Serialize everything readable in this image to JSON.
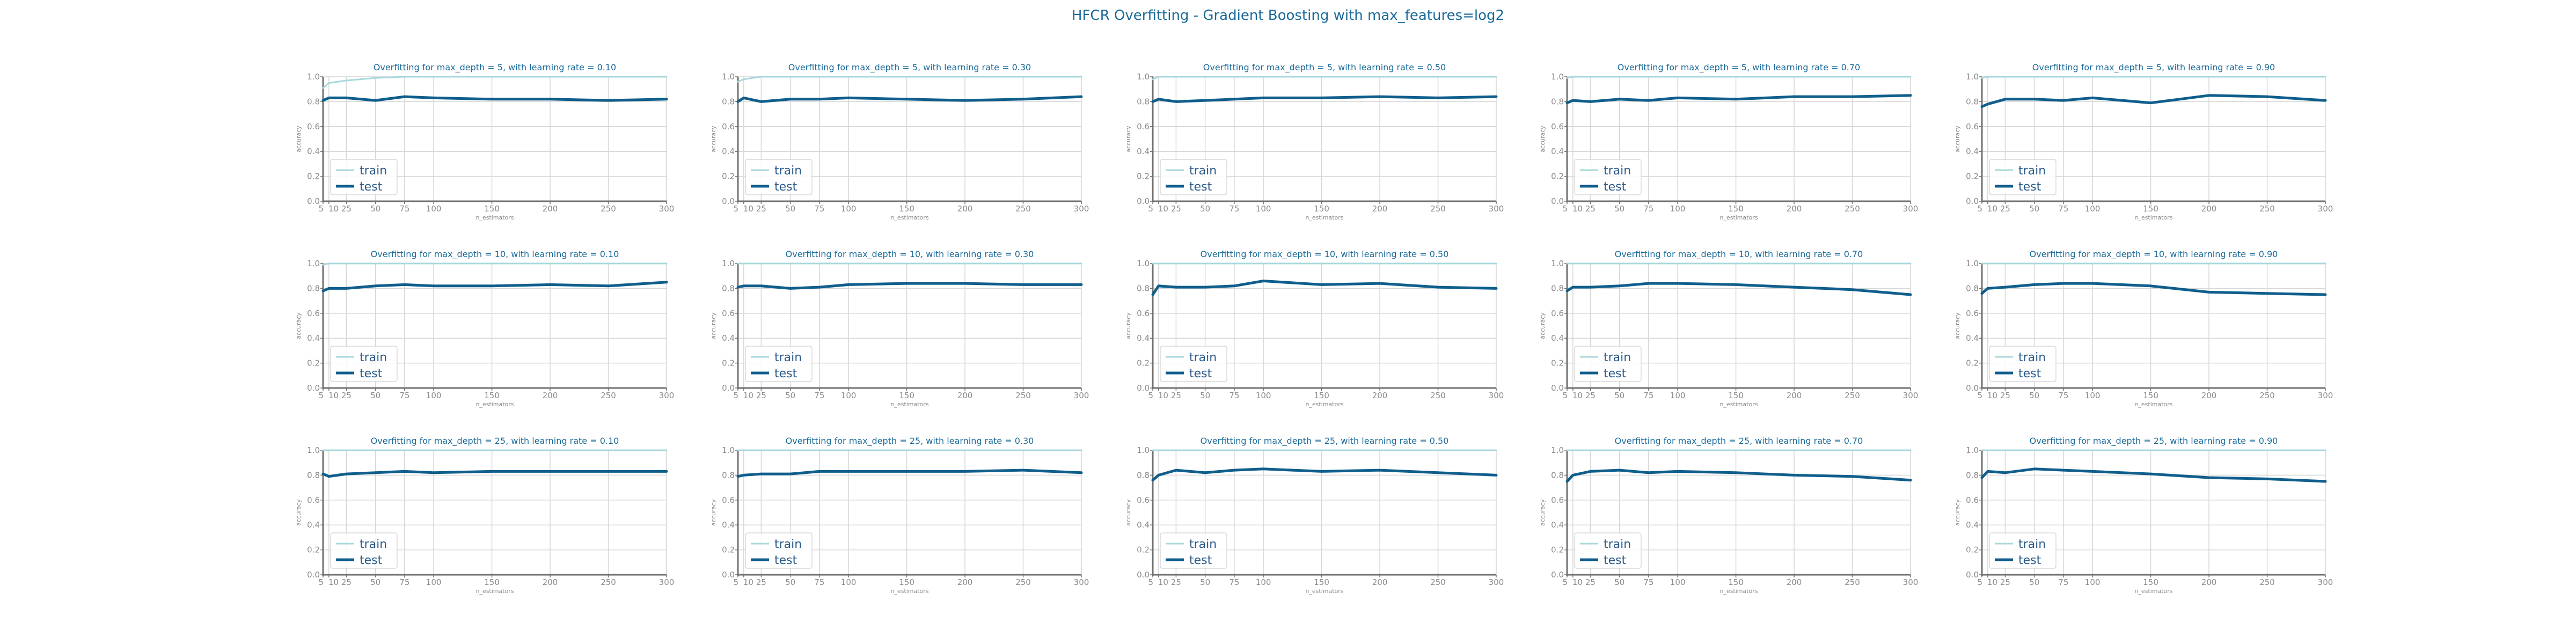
{
  "title": "HFCR Overfitting - Gradient Boosting with max_features=log2",
  "colors": {
    "train": "#a8d8dc",
    "test": "#0f5e8c",
    "grid": "#d6d6d6",
    "axis": "#707070",
    "text": "#1a6a9a"
  },
  "chart_data": [
    {
      "type": "line",
      "title": "Overfitting for max_depth = 5, with learning rate = 0.10",
      "xlabel": "n_estimators",
      "ylabel": "accuracy",
      "x": [
        5,
        10,
        25,
        50,
        75,
        100,
        150,
        200,
        250,
        300
      ],
      "xticks": [
        "5",
        "10",
        "25",
        "50",
        "75",
        "100",
        "150",
        "200",
        "250",
        "300"
      ],
      "ylim": [
        0,
        1
      ],
      "yticks": [
        "0.0",
        "0.2",
        "0.4",
        "0.6",
        "0.8",
        "1.0"
      ],
      "grid": true,
      "legend": "lower left",
      "series": [
        {
          "name": "train",
          "values": [
            0.91,
            0.95,
            0.97,
            0.99,
            1.0,
            1.0,
            1.0,
            1.0,
            1.0,
            1.0
          ]
        },
        {
          "name": "test",
          "values": [
            0.81,
            0.83,
            0.83,
            0.81,
            0.84,
            0.83,
            0.82,
            0.82,
            0.81,
            0.82
          ]
        }
      ]
    },
    {
      "type": "line",
      "title": "Overfitting for max_depth = 5, with learning rate = 0.30",
      "xlabel": "n_estimators",
      "ylabel": "accuracy",
      "x": [
        5,
        10,
        25,
        50,
        75,
        100,
        150,
        200,
        250,
        300
      ],
      "xticks": [
        "5",
        "10",
        "25",
        "50",
        "75",
        "100",
        "150",
        "200",
        "250",
        "300"
      ],
      "ylim": [
        0,
        1
      ],
      "yticks": [
        "0.0",
        "0.2",
        "0.4",
        "0.6",
        "0.8",
        "1.0"
      ],
      "grid": true,
      "legend": "lower left",
      "series": [
        {
          "name": "train",
          "values": [
            0.96,
            0.98,
            1.0,
            1.0,
            1.0,
            1.0,
            1.0,
            1.0,
            1.0,
            1.0
          ]
        },
        {
          "name": "test",
          "values": [
            0.8,
            0.83,
            0.8,
            0.82,
            0.82,
            0.83,
            0.82,
            0.81,
            0.82,
            0.84
          ]
        }
      ]
    },
    {
      "type": "line",
      "title": "Overfitting for max_depth = 5, with learning rate = 0.50",
      "xlabel": "n_estimators",
      "ylabel": "accuracy",
      "x": [
        5,
        10,
        25,
        50,
        75,
        100,
        150,
        200,
        250,
        300
      ],
      "xticks": [
        "5",
        "10",
        "25",
        "50",
        "75",
        "100",
        "150",
        "200",
        "250",
        "300"
      ],
      "ylim": [
        0,
        1
      ],
      "yticks": [
        "0.0",
        "0.2",
        "0.4",
        "0.6",
        "0.8",
        "1.0"
      ],
      "grid": true,
      "legend": "lower left",
      "series": [
        {
          "name": "train",
          "values": [
            0.98,
            1.0,
            1.0,
            1.0,
            1.0,
            1.0,
            1.0,
            1.0,
            1.0,
            1.0
          ]
        },
        {
          "name": "test",
          "values": [
            0.8,
            0.82,
            0.8,
            0.81,
            0.82,
            0.83,
            0.83,
            0.84,
            0.83,
            0.84
          ]
        }
      ]
    },
    {
      "type": "line",
      "title": "Overfitting for max_depth = 5, with learning rate = 0.70",
      "xlabel": "n_estimators",
      "ylabel": "accuracy",
      "x": [
        5,
        10,
        25,
        50,
        75,
        100,
        150,
        200,
        250,
        300
      ],
      "xticks": [
        "5",
        "10",
        "25",
        "50",
        "75",
        "100",
        "150",
        "200",
        "250",
        "300"
      ],
      "ylim": [
        0,
        1
      ],
      "yticks": [
        "0.0",
        "0.2",
        "0.4",
        "0.6",
        "0.8",
        "1.0"
      ],
      "grid": true,
      "legend": "lower left",
      "series": [
        {
          "name": "train",
          "values": [
            0.99,
            1.0,
            1.0,
            1.0,
            1.0,
            1.0,
            1.0,
            1.0,
            1.0,
            1.0
          ]
        },
        {
          "name": "test",
          "values": [
            0.79,
            0.81,
            0.8,
            0.82,
            0.81,
            0.83,
            0.82,
            0.84,
            0.84,
            0.85
          ]
        }
      ]
    },
    {
      "type": "line",
      "title": "Overfitting for max_depth = 5, with learning rate = 0.90",
      "xlabel": "n_estimators",
      "ylabel": "accuracy",
      "x": [
        5,
        10,
        25,
        50,
        75,
        100,
        150,
        200,
        250,
        300
      ],
      "xticks": [
        "5",
        "10",
        "25",
        "50",
        "75",
        "100",
        "150",
        "200",
        "250",
        "300"
      ],
      "ylim": [
        0,
        1
      ],
      "yticks": [
        "0.0",
        "0.2",
        "0.4",
        "0.6",
        "0.8",
        "1.0"
      ],
      "grid": true,
      "legend": "lower left",
      "series": [
        {
          "name": "train",
          "values": [
            0.99,
            1.0,
            1.0,
            1.0,
            1.0,
            1.0,
            1.0,
            1.0,
            1.0,
            1.0
          ]
        },
        {
          "name": "test",
          "values": [
            0.76,
            0.78,
            0.82,
            0.82,
            0.81,
            0.83,
            0.79,
            0.85,
            0.84,
            0.81
          ]
        }
      ]
    },
    {
      "type": "line",
      "title": "Overfitting for max_depth = 10, with learning rate = 0.10",
      "xlabel": "n_estimators",
      "ylabel": "accuracy",
      "x": [
        5,
        10,
        25,
        50,
        75,
        100,
        150,
        200,
        250,
        300
      ],
      "xticks": [
        "5",
        "10",
        "25",
        "50",
        "75",
        "100",
        "150",
        "200",
        "250",
        "300"
      ],
      "ylim": [
        0,
        1
      ],
      "yticks": [
        "0.0",
        "0.2",
        "0.4",
        "0.6",
        "0.8",
        "1.0"
      ],
      "grid": true,
      "legend": "lower left",
      "series": [
        {
          "name": "train",
          "values": [
            0.99,
            1.0,
            1.0,
            1.0,
            1.0,
            1.0,
            1.0,
            1.0,
            1.0,
            1.0
          ]
        },
        {
          "name": "test",
          "values": [
            0.78,
            0.8,
            0.8,
            0.82,
            0.83,
            0.82,
            0.82,
            0.83,
            0.82,
            0.85
          ]
        }
      ]
    },
    {
      "type": "line",
      "title": "Overfitting for max_depth = 10, with learning rate = 0.30",
      "xlabel": "n_estimators",
      "ylabel": "accuracy",
      "x": [
        5,
        10,
        25,
        50,
        75,
        100,
        150,
        200,
        250,
        300
      ],
      "xticks": [
        "5",
        "10",
        "25",
        "50",
        "75",
        "100",
        "150",
        "200",
        "250",
        "300"
      ],
      "ylim": [
        0,
        1
      ],
      "yticks": [
        "0.0",
        "0.2",
        "0.4",
        "0.6",
        "0.8",
        "1.0"
      ],
      "grid": true,
      "legend": "lower left",
      "series": [
        {
          "name": "train",
          "values": [
            1.0,
            1.0,
            1.0,
            1.0,
            1.0,
            1.0,
            1.0,
            1.0,
            1.0,
            1.0
          ]
        },
        {
          "name": "test",
          "values": [
            0.81,
            0.82,
            0.82,
            0.8,
            0.81,
            0.83,
            0.84,
            0.84,
            0.83,
            0.83
          ]
        }
      ]
    },
    {
      "type": "line",
      "title": "Overfitting for max_depth = 10, with learning rate = 0.50",
      "xlabel": "n_estimators",
      "ylabel": "accuracy",
      "x": [
        5,
        10,
        25,
        50,
        75,
        100,
        150,
        200,
        250,
        300
      ],
      "xticks": [
        "5",
        "10",
        "25",
        "50",
        "75",
        "100",
        "150",
        "200",
        "250",
        "300"
      ],
      "ylim": [
        0,
        1
      ],
      "yticks": [
        "0.0",
        "0.2",
        "0.4",
        "0.6",
        "0.8",
        "1.0"
      ],
      "grid": true,
      "legend": "lower left",
      "series": [
        {
          "name": "train",
          "values": [
            1.0,
            1.0,
            1.0,
            1.0,
            1.0,
            1.0,
            1.0,
            1.0,
            1.0,
            1.0
          ]
        },
        {
          "name": "test",
          "values": [
            0.75,
            0.82,
            0.81,
            0.81,
            0.82,
            0.86,
            0.83,
            0.84,
            0.81,
            0.8
          ]
        }
      ]
    },
    {
      "type": "line",
      "title": "Overfitting for max_depth = 10, with learning rate = 0.70",
      "xlabel": "n_estimators",
      "ylabel": "accuracy",
      "x": [
        5,
        10,
        25,
        50,
        75,
        100,
        150,
        200,
        250,
        300
      ],
      "xticks": [
        "5",
        "10",
        "25",
        "50",
        "75",
        "100",
        "150",
        "200",
        "250",
        "300"
      ],
      "ylim": [
        0,
        1
      ],
      "yticks": [
        "0.0",
        "0.2",
        "0.4",
        "0.6",
        "0.8",
        "1.0"
      ],
      "grid": true,
      "legend": "lower left",
      "series": [
        {
          "name": "train",
          "values": [
            1.0,
            1.0,
            1.0,
            1.0,
            1.0,
            1.0,
            1.0,
            1.0,
            1.0,
            1.0
          ]
        },
        {
          "name": "test",
          "values": [
            0.78,
            0.81,
            0.81,
            0.82,
            0.84,
            0.84,
            0.83,
            0.81,
            0.79,
            0.75
          ]
        }
      ]
    },
    {
      "type": "line",
      "title": "Overfitting for max_depth = 10, with learning rate = 0.90",
      "xlabel": "n_estimators",
      "ylabel": "accuracy",
      "x": [
        5,
        10,
        25,
        50,
        75,
        100,
        150,
        200,
        250,
        300
      ],
      "xticks": [
        "5",
        "10",
        "25",
        "50",
        "75",
        "100",
        "150",
        "200",
        "250",
        "300"
      ],
      "ylim": [
        0,
        1
      ],
      "yticks": [
        "0.0",
        "0.2",
        "0.4",
        "0.6",
        "0.8",
        "1.0"
      ],
      "grid": true,
      "legend": "lower left",
      "series": [
        {
          "name": "train",
          "values": [
            1.0,
            1.0,
            1.0,
            1.0,
            1.0,
            1.0,
            1.0,
            1.0,
            1.0,
            1.0
          ]
        },
        {
          "name": "test",
          "values": [
            0.76,
            0.8,
            0.81,
            0.83,
            0.84,
            0.84,
            0.82,
            0.77,
            0.76,
            0.75
          ]
        }
      ]
    },
    {
      "type": "line",
      "title": "Overfitting for max_depth = 25, with learning rate = 0.10",
      "xlabel": "n_estimators",
      "ylabel": "accuracy",
      "x": [
        5,
        10,
        25,
        50,
        75,
        100,
        150,
        200,
        250,
        300
      ],
      "xticks": [
        "5",
        "10",
        "25",
        "50",
        "75",
        "100",
        "150",
        "200",
        "250",
        "300"
      ],
      "ylim": [
        0,
        1
      ],
      "yticks": [
        "0.0",
        "0.2",
        "0.4",
        "0.6",
        "0.8",
        "1.0"
      ],
      "grid": true,
      "legend": "lower left",
      "series": [
        {
          "name": "train",
          "values": [
            1.0,
            1.0,
            1.0,
            1.0,
            1.0,
            1.0,
            1.0,
            1.0,
            1.0,
            1.0
          ]
        },
        {
          "name": "test",
          "values": [
            0.81,
            0.79,
            0.81,
            0.82,
            0.83,
            0.82,
            0.83,
            0.83,
            0.83,
            0.83
          ]
        }
      ]
    },
    {
      "type": "line",
      "title": "Overfitting for max_depth = 25, with learning rate = 0.30",
      "xlabel": "n_estimators",
      "ylabel": "accuracy",
      "x": [
        5,
        10,
        25,
        50,
        75,
        100,
        150,
        200,
        250,
        300
      ],
      "xticks": [
        "5",
        "10",
        "25",
        "50",
        "75",
        "100",
        "150",
        "200",
        "250",
        "300"
      ],
      "ylim": [
        0,
        1
      ],
      "yticks": [
        "0.0",
        "0.2",
        "0.4",
        "0.6",
        "0.8",
        "1.0"
      ],
      "grid": true,
      "legend": "lower left",
      "series": [
        {
          "name": "train",
          "values": [
            1.0,
            1.0,
            1.0,
            1.0,
            1.0,
            1.0,
            1.0,
            1.0,
            1.0,
            1.0
          ]
        },
        {
          "name": "test",
          "values": [
            0.79,
            0.8,
            0.81,
            0.81,
            0.83,
            0.83,
            0.83,
            0.83,
            0.84,
            0.82
          ]
        }
      ]
    },
    {
      "type": "line",
      "title": "Overfitting for max_depth = 25, with learning rate = 0.50",
      "xlabel": "n_estimators",
      "ylabel": "accuracy",
      "x": [
        5,
        10,
        25,
        50,
        75,
        100,
        150,
        200,
        250,
        300
      ],
      "xticks": [
        "5",
        "10",
        "25",
        "50",
        "75",
        "100",
        "150",
        "200",
        "250",
        "300"
      ],
      "ylim": [
        0,
        1
      ],
      "yticks": [
        "0.0",
        "0.2",
        "0.4",
        "0.6",
        "0.8",
        "1.0"
      ],
      "grid": true,
      "legend": "lower left",
      "series": [
        {
          "name": "train",
          "values": [
            1.0,
            1.0,
            1.0,
            1.0,
            1.0,
            1.0,
            1.0,
            1.0,
            1.0,
            1.0
          ]
        },
        {
          "name": "test",
          "values": [
            0.76,
            0.8,
            0.84,
            0.82,
            0.84,
            0.85,
            0.83,
            0.84,
            0.82,
            0.8
          ]
        }
      ]
    },
    {
      "type": "line",
      "title": "Overfitting for max_depth = 25, with learning rate = 0.70",
      "xlabel": "n_estimators",
      "ylabel": "accuracy",
      "x": [
        5,
        10,
        25,
        50,
        75,
        100,
        150,
        200,
        250,
        300
      ],
      "xticks": [
        "5",
        "10",
        "25",
        "50",
        "75",
        "100",
        "150",
        "200",
        "250",
        "300"
      ],
      "ylim": [
        0,
        1
      ],
      "yticks": [
        "0.0",
        "0.2",
        "0.4",
        "0.6",
        "0.8",
        "1.0"
      ],
      "grid": true,
      "legend": "lower left",
      "series": [
        {
          "name": "train",
          "values": [
            1.0,
            1.0,
            1.0,
            1.0,
            1.0,
            1.0,
            1.0,
            1.0,
            1.0,
            1.0
          ]
        },
        {
          "name": "test",
          "values": [
            0.75,
            0.8,
            0.83,
            0.84,
            0.82,
            0.83,
            0.82,
            0.8,
            0.79,
            0.76
          ]
        }
      ]
    },
    {
      "type": "line",
      "title": "Overfitting for max_depth = 25, with learning rate = 0.90",
      "xlabel": "n_estimators",
      "ylabel": "accuracy",
      "x": [
        5,
        10,
        25,
        50,
        75,
        100,
        150,
        200,
        250,
        300
      ],
      "xticks": [
        "5",
        "10",
        "25",
        "50",
        "75",
        "100",
        "150",
        "200",
        "250",
        "300"
      ],
      "ylim": [
        0,
        1
      ],
      "yticks": [
        "0.0",
        "0.2",
        "0.4",
        "0.6",
        "0.8",
        "1.0"
      ],
      "grid": true,
      "legend": "lower left",
      "series": [
        {
          "name": "train",
          "values": [
            1.0,
            1.0,
            1.0,
            1.0,
            1.0,
            1.0,
            1.0,
            1.0,
            1.0,
            1.0
          ]
        },
        {
          "name": "test",
          "values": [
            0.78,
            0.83,
            0.82,
            0.85,
            0.84,
            0.83,
            0.81,
            0.78,
            0.77,
            0.75
          ]
        }
      ]
    }
  ]
}
